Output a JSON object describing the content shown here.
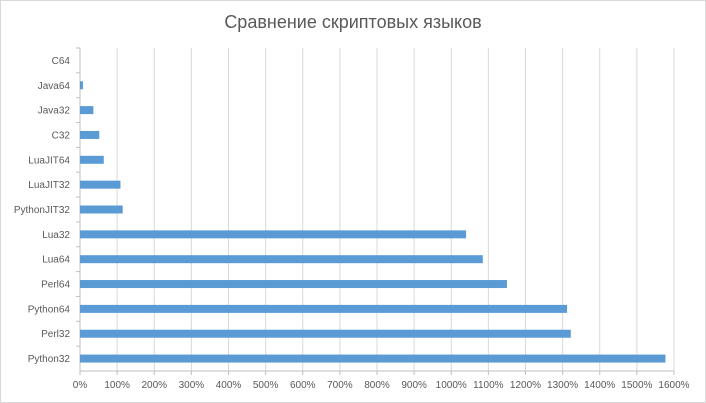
{
  "chart_data": {
    "type": "bar",
    "orientation": "horizontal",
    "title": "Сравнение скриптовых языков",
    "xlabel": "",
    "ylabel": "",
    "xlim": [
      0,
      1600
    ],
    "x_tick_step": 100,
    "x_tick_suffix": "%",
    "grid": true,
    "legend": "none",
    "bar_color": "#5b9bd5",
    "categories": [
      "C64",
      "Java64",
      "Java32",
      "C32",
      "LuaJIT64",
      "LuaJIT32",
      "PythonJIT32",
      "Lua32",
      "Lua64",
      "Perl64",
      "Python64",
      "Perl32",
      "Python32"
    ],
    "values": [
      0,
      8,
      36,
      52,
      64,
      109,
      115,
      1040,
      1085,
      1150,
      1312,
      1322,
      1577
    ]
  }
}
